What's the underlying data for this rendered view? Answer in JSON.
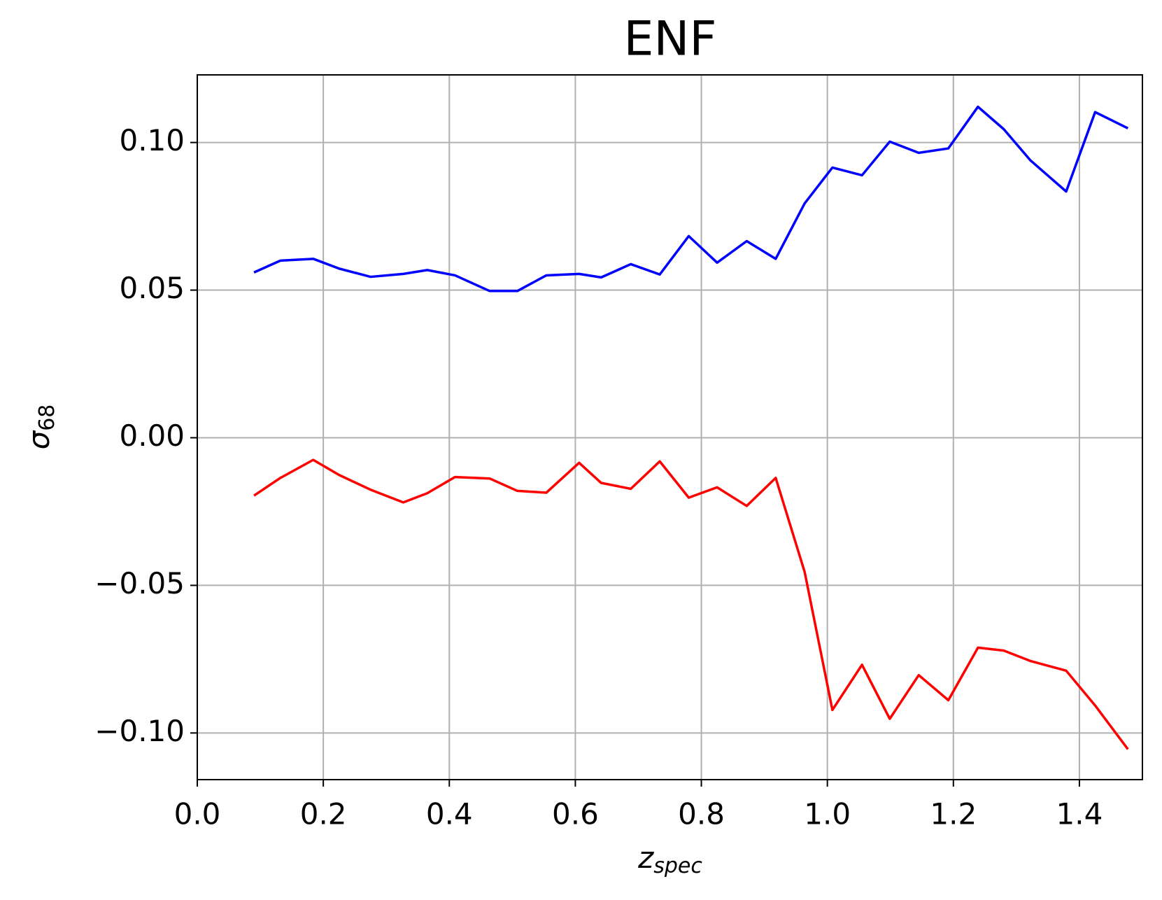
{
  "chart_data": {
    "type": "line",
    "title": "ENF",
    "xlabel": {
      "main": "z",
      "sub": "spec"
    },
    "ylabel": {
      "main": "σ",
      "sub": "68"
    },
    "xlim": [
      0,
      1.5
    ],
    "xticks": [
      {
        "value": 0,
        "label": "0.0"
      },
      0.2,
      0.4,
      0.6,
      0.8,
      {
        "value": 1,
        "label": "1.0"
      },
      1.2,
      1.4
    ],
    "ylim": [
      -0.1158,
      0.1229
    ],
    "yticks": [
      {
        "value": -0.1,
        "label": "−0.10"
      },
      {
        "value": -0.05,
        "label": "−0.05"
      },
      {
        "value": 0,
        "label": "0.00"
      },
      {
        "value": 0.05,
        "label": "0.05"
      },
      {
        "value": 0.1,
        "label": "0.10"
      }
    ],
    "grid": true,
    "x": [
      0.09,
      0.132,
      0.184,
      0.225,
      0.275,
      0.327,
      0.365,
      0.409,
      0.464,
      0.508,
      0.554,
      0.606,
      0.641,
      0.688,
      0.734,
      0.78,
      0.825,
      0.872,
      0.918,
      0.964,
      1.008,
      1.055,
      1.099,
      1.145,
      1.192,
      1.239,
      1.28,
      1.322,
      1.379,
      1.425,
      1.477
    ],
    "series": [
      {
        "color": "#0000ff",
        "values": [
          0.056,
          0.06,
          0.0606,
          0.0573,
          0.0545,
          0.0555,
          0.0568,
          0.055,
          0.0497,
          0.0497,
          0.055,
          0.0555,
          0.0543,
          0.0588,
          0.0553,
          0.0683,
          0.0593,
          0.0666,
          0.0606,
          0.0794,
          0.0915,
          0.0889,
          0.1003,
          0.0965,
          0.098,
          0.1121,
          0.1045,
          0.094,
          0.0834,
          0.1103,
          0.1048
        ]
      },
      {
        "color": "#ff0000",
        "values": [
          -0.0196,
          -0.0136,
          -0.0075,
          -0.0126,
          -0.0176,
          -0.0219,
          -0.0188,
          -0.0133,
          -0.0138,
          -0.018,
          -0.0186,
          -0.0085,
          -0.0153,
          -0.0173,
          -0.008,
          -0.0203,
          -0.0168,
          -0.0231,
          -0.0136,
          -0.0455,
          -0.0922,
          -0.0769,
          -0.0952,
          -0.0804,
          -0.0889,
          -0.0711,
          -0.0721,
          -0.0756,
          -0.0789,
          -0.0907,
          -0.1055
        ]
      }
    ]
  }
}
